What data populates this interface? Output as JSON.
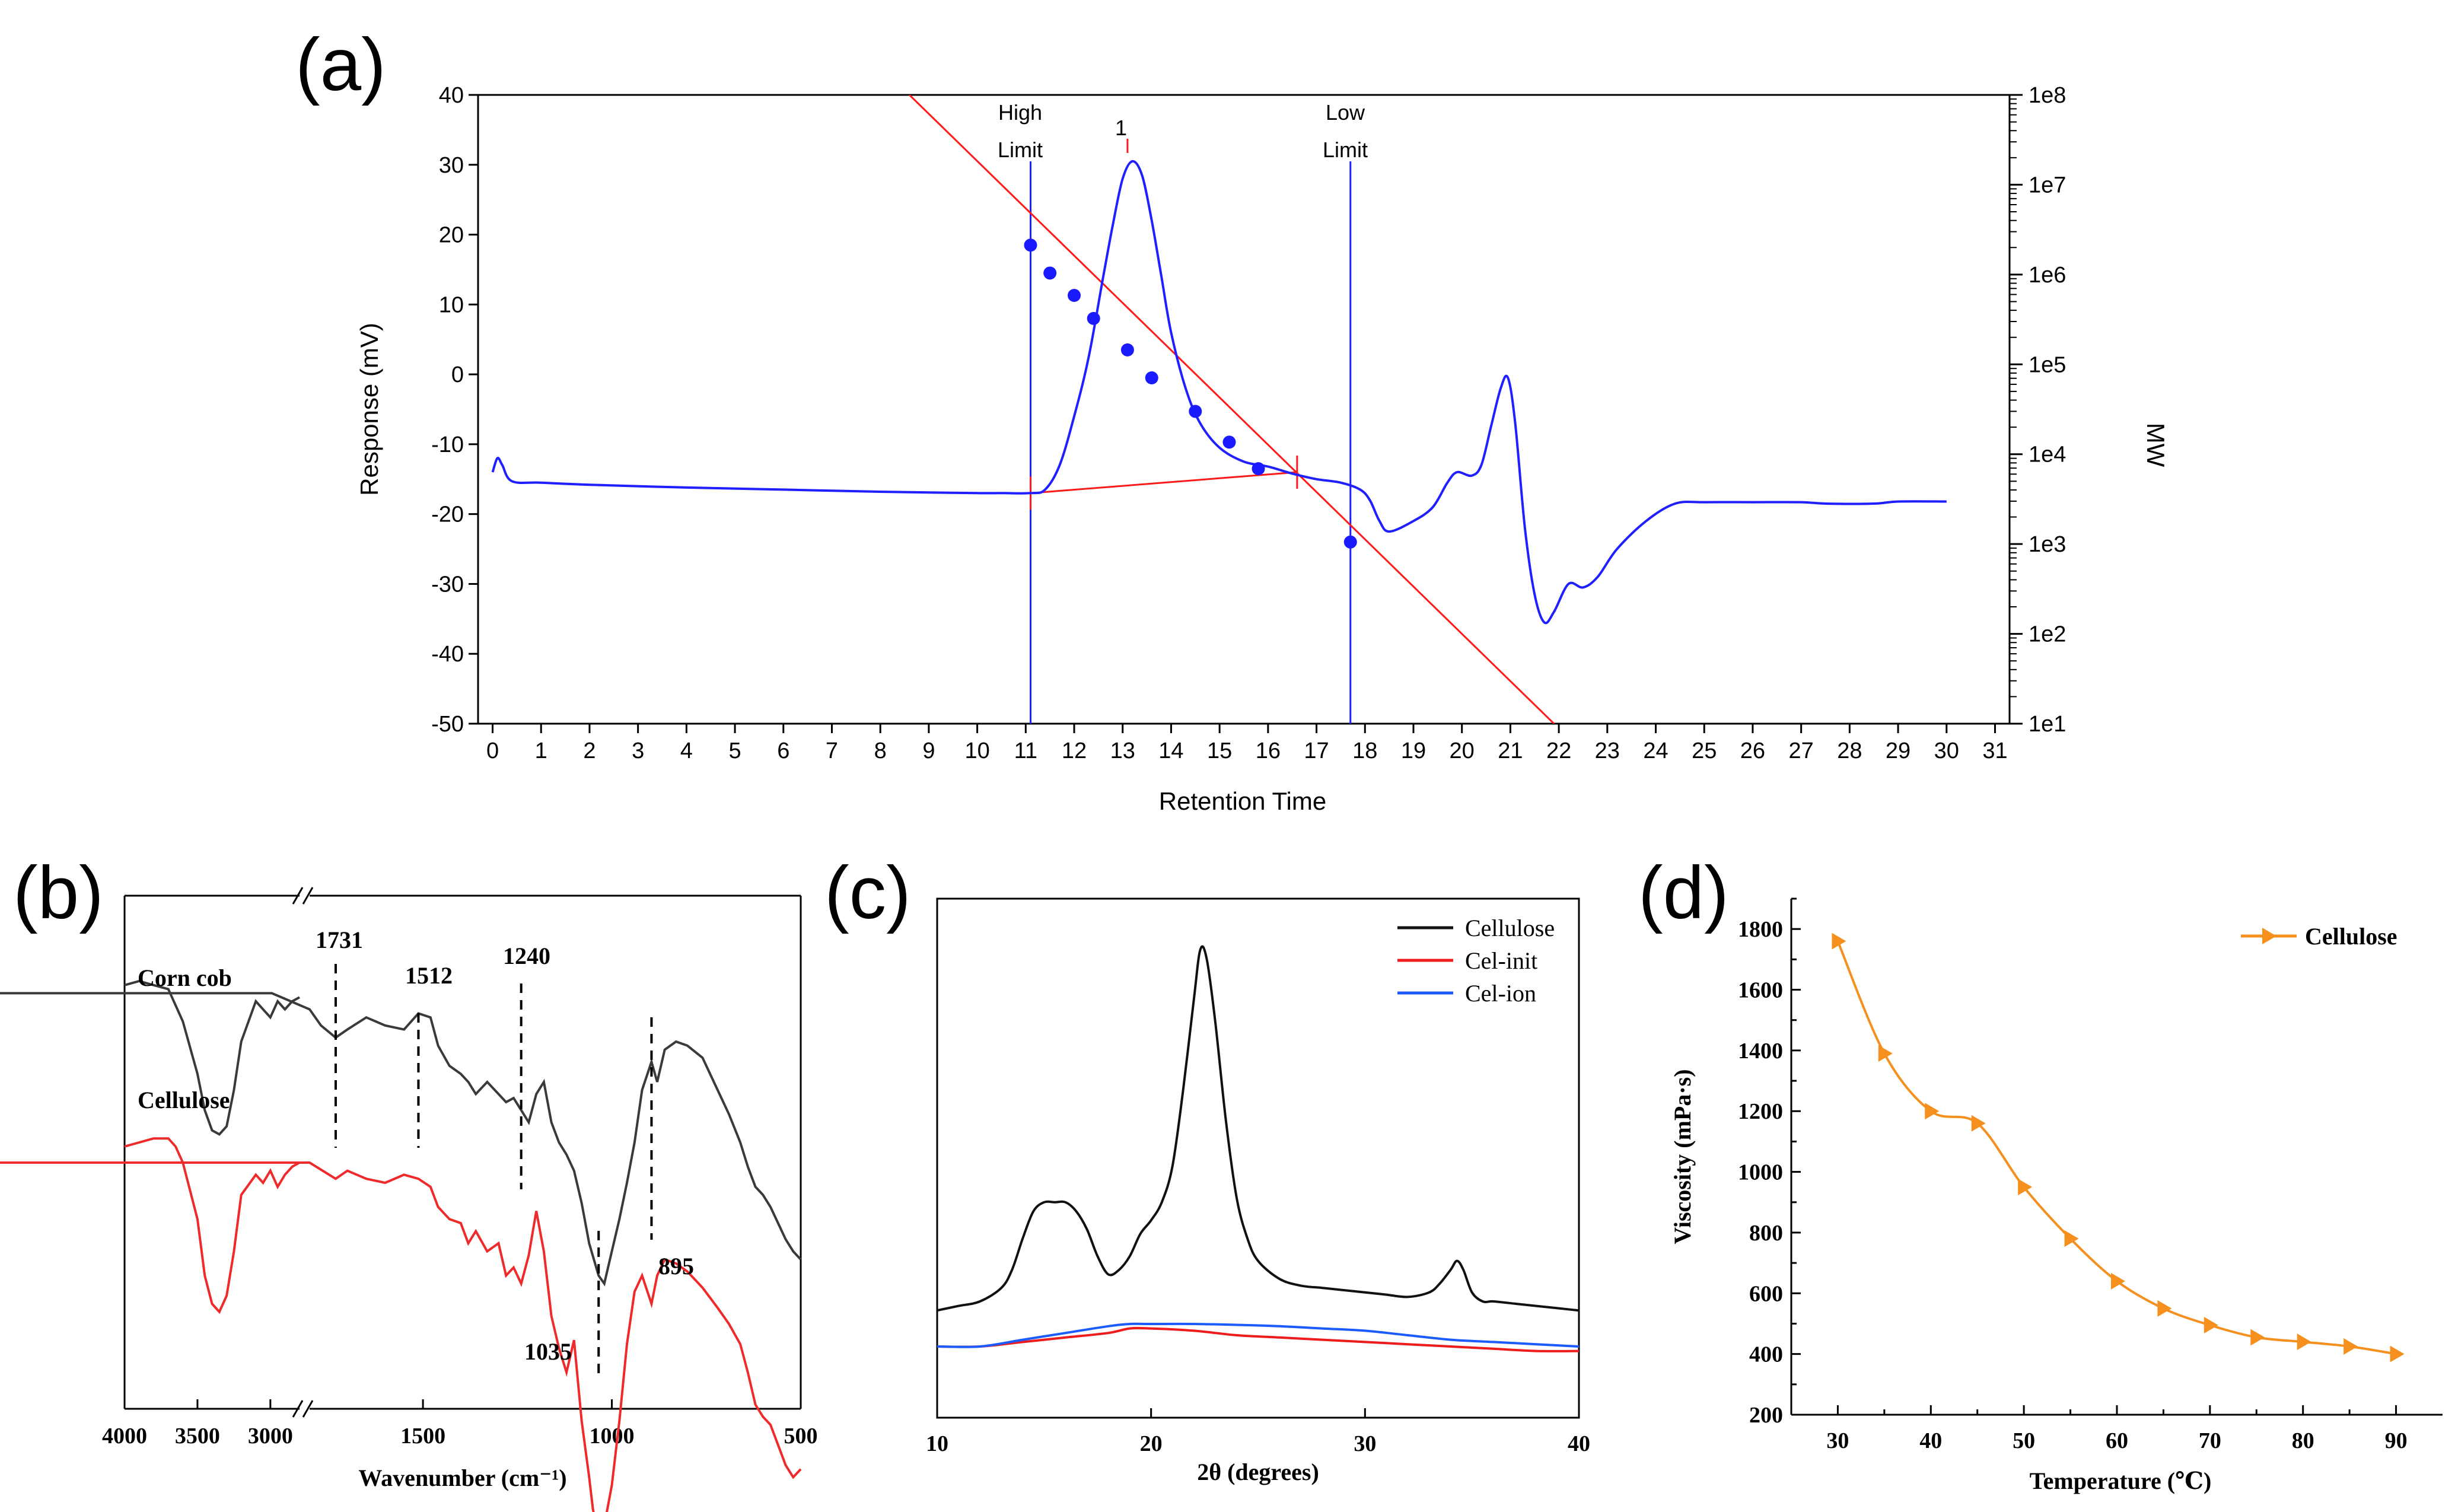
{
  "chart_data": [
    {
      "panel_label": "(a)",
      "type": "line",
      "xlabel": "Retention Time",
      "ylabel": "Response (mV)",
      "y2label": "MW",
      "xlim": [
        -0.3,
        31.3
      ],
      "ylim": [
        -50,
        40
      ],
      "xticks": [
        0,
        1,
        2,
        3,
        4,
        5,
        6,
        7,
        8,
        9,
        10,
        11,
        12,
        13,
        14,
        15,
        16,
        17,
        18,
        19,
        20,
        21,
        22,
        23,
        24,
        25,
        26,
        27,
        28,
        29,
        30,
        31
      ],
      "yticks": [
        40,
        30,
        20,
        10,
        0,
        -10,
        -20,
        -30,
        -40,
        -50
      ],
      "y2ticks": [
        "1e8",
        "1e7",
        "1e6",
        "1e5",
        "1e4",
        "1e3",
        "1e2",
        "1e1"
      ],
      "y2lim_log10": [
        1,
        8
      ],
      "markers": [
        {
          "label_top": "High",
          "label_bottom": "Limit",
          "x": 11.1
        },
        {
          "label_top": "Low",
          "label_bottom": "Limit",
          "x": 17.7
        }
      ],
      "peak_label": {
        "text": "1",
        "x": 13.1,
        "y": 30.5
      },
      "baseline": {
        "x": [
          11.1,
          16.6
        ],
        "y": [
          -17,
          -14
        ]
      },
      "calibration_line": {
        "x": [
          8.6,
          21.9
        ],
        "log10_mw": [
          8.0,
          1.0
        ]
      },
      "calibration_points": {
        "x": [
          11.1,
          11.5,
          12.0,
          12.4,
          13.1,
          13.6,
          14.5,
          15.2,
          15.8,
          17.7
        ],
        "y": [
          18.5,
          14.5,
          11.3,
          8.0,
          3.5,
          -0.5,
          -5.3,
          -9.7,
          -13.5,
          -24.0
        ]
      },
      "series": [
        {
          "name": "Response",
          "x": [
            0,
            0.1,
            0.2,
            0.4,
            1,
            2,
            4,
            6,
            8,
            9,
            10,
            10.5,
            11.1,
            11.4,
            11.7,
            12,
            12.3,
            12.6,
            12.8,
            13,
            13.2,
            13.4,
            13.6,
            13.8,
            14,
            14.3,
            14.6,
            15,
            15.5,
            16,
            16.5,
            17,
            17.5,
            17.9,
            18.1,
            18.3,
            18.5,
            19,
            19.4,
            19.7,
            19.9,
            20.2,
            20.4,
            20.6,
            20.8,
            20.95,
            21.1,
            21.3,
            21.5,
            21.7,
            21.9,
            22.2,
            22.5,
            22.8,
            23.2,
            23.8,
            24.4,
            25,
            26,
            27,
            27.5,
            28.5,
            29,
            30
          ],
          "y": [
            -14,
            -12,
            -13,
            -15.3,
            -15.5,
            -15.8,
            -16.2,
            -16.5,
            -16.8,
            -16.9,
            -17,
            -17,
            -17,
            -16.5,
            -13,
            -6,
            2.5,
            14,
            21.5,
            28,
            30.5,
            28.5,
            22,
            14,
            6,
            -2,
            -7,
            -10.5,
            -12.5,
            -13.2,
            -14.2,
            -15,
            -15.5,
            -16.5,
            -18,
            -21,
            -22.5,
            -21,
            -19,
            -15.5,
            -14,
            -14.5,
            -13,
            -7.5,
            -2,
            -0.5,
            -7,
            -22,
            -31.5,
            -35.5,
            -34,
            -30,
            -30.5,
            -29,
            -25,
            -21,
            -18.5,
            -18.3,
            -18.3,
            -18.3,
            -18.5,
            -18.5,
            -18.2,
            -18.2
          ]
        }
      ],
      "colors": {
        "response": "#1f1fff",
        "calibration": "#ff1a1a",
        "points": "#1a1aff",
        "markers": "#1f1fff"
      }
    },
    {
      "panel_label": "(b)",
      "type": "line",
      "xlabel": "Wavenumber (cm⁻¹)",
      "xticks": [
        4000,
        3500,
        3000,
        1500,
        1000,
        500
      ],
      "axis_break": true,
      "labels": [
        "Corn cob",
        "Cellulose"
      ],
      "peak_labels": [
        "1731",
        "1512",
        "1240",
        "1035",
        "895"
      ],
      "peak_positions": [
        1731,
        1512,
        1240,
        1035,
        895
      ],
      "series": [
        {
          "name": "Corn cob",
          "color": "#3a3a3a",
          "x": [
            4000,
            3900,
            3800,
            3700,
            3600,
            3500,
            3450,
            3400,
            3350,
            3300,
            3250,
            3200,
            3100,
            3050,
            3000,
            2950,
            2900,
            2850,
            2800,
            2700,
            2600,
            2500,
            2400,
            2300,
            2200,
            2100,
            2000,
            1900,
            1800,
            1770,
            1731,
            1700,
            1650,
            1600,
            1550,
            1512,
            1480,
            1460,
            1430,
            1400,
            1380,
            1360,
            1330,
            1300,
            1280,
            1260,
            1240,
            1220,
            1200,
            1180,
            1160,
            1140,
            1120,
            1100,
            1080,
            1060,
            1035,
            1020,
            1000,
            980,
            960,
            940,
            920,
            895,
            880,
            860,
            830,
            800,
            760,
            720,
            690,
            660,
            640,
            620,
            600,
            580,
            560,
            540,
            520,
            500
          ],
          "y": [
            0.94,
            0.95,
            0.94,
            0.93,
            0.85,
            0.72,
            0.63,
            0.58,
            0.57,
            0.59,
            0.68,
            0.8,
            0.9,
            0.88,
            0.86,
            0.9,
            0.88,
            0.9,
            0.91,
            0.92,
            0.92,
            0.92,
            0.92,
            0.92,
            0.92,
            0.92,
            0.92,
            0.92,
            0.88,
            0.84,
            0.81,
            0.83,
            0.86,
            0.84,
            0.83,
            0.87,
            0.86,
            0.79,
            0.74,
            0.72,
            0.7,
            0.67,
            0.7,
            0.67,
            0.65,
            0.66,
            0.63,
            0.6,
            0.67,
            0.7,
            0.6,
            0.55,
            0.52,
            0.48,
            0.4,
            0.3,
            0.22,
            0.2,
            0.28,
            0.36,
            0.45,
            0.55,
            0.68,
            0.75,
            0.7,
            0.78,
            0.8,
            0.79,
            0.76,
            0.68,
            0.62,
            0.55,
            0.49,
            0.44,
            0.42,
            0.39,
            0.35,
            0.31,
            0.28,
            0.26
          ]
        },
        {
          "name": "Cellulose",
          "color": "#ee2a2a",
          "x": [
            4000,
            3900,
            3800,
            3700,
            3650,
            3600,
            3500,
            3450,
            3400,
            3350,
            3300,
            3250,
            3200,
            3100,
            3050,
            3000,
            2950,
            2900,
            2850,
            2800,
            2700,
            2600,
            2500,
            2400,
            2300,
            2200,
            2100,
            2000,
            1900,
            1800,
            1731,
            1700,
            1650,
            1600,
            1550,
            1512,
            1480,
            1460,
            1430,
            1400,
            1380,
            1360,
            1330,
            1300,
            1280,
            1260,
            1240,
            1220,
            1200,
            1180,
            1160,
            1140,
            1120,
            1100,
            1080,
            1060,
            1050,
            1035,
            1020,
            1000,
            980,
            960,
            940,
            920,
            895,
            880,
            860,
            830,
            800,
            760,
            720,
            690,
            660,
            640,
            620,
            600,
            580,
            560,
            540,
            520,
            500
          ],
          "y": [
            0.54,
            0.55,
            0.56,
            0.56,
            0.54,
            0.5,
            0.36,
            0.22,
            0.15,
            0.13,
            0.17,
            0.28,
            0.42,
            0.47,
            0.45,
            0.48,
            0.44,
            0.47,
            0.49,
            0.5,
            0.5,
            0.5,
            0.5,
            0.5,
            0.5,
            0.5,
            0.5,
            0.5,
            0.5,
            0.5,
            0.46,
            0.48,
            0.46,
            0.45,
            0.47,
            0.46,
            0.44,
            0.39,
            0.36,
            0.35,
            0.3,
            0.33,
            0.28,
            0.3,
            0.22,
            0.24,
            0.2,
            0.27,
            0.38,
            0.28,
            0.12,
            0.04,
            -0.02,
            0.06,
            -0.14,
            -0.28,
            -0.36,
            -0.42,
            -0.4,
            -0.3,
            -0.14,
            0.05,
            0.18,
            0.22,
            0.15,
            0.22,
            0.26,
            0.25,
            0.23,
            0.19,
            0.14,
            0.1,
            0.05,
            -0.02,
            -0.1,
            -0.13,
            -0.15,
            -0.2,
            -0.25,
            -0.28,
            -0.26
          ]
        }
      ]
    },
    {
      "panel_label": "(c)",
      "type": "line",
      "xlabel": "2θ (degrees)",
      "xlim": [
        10,
        40
      ],
      "ylim": [
        0,
        1
      ],
      "xticks": [
        10,
        20,
        30,
        40
      ],
      "series": [
        {
          "name": "Cellulose",
          "color": "#111111",
          "x": [
            10,
            11,
            12,
            13,
            13.5,
            14,
            14.5,
            15,
            15.5,
            16,
            16.5,
            17,
            17.5,
            18,
            18.5,
            19,
            19.5,
            20,
            20.5,
            21,
            21.5,
            22,
            22.3,
            22.6,
            23,
            23.5,
            24,
            24.5,
            25,
            26,
            27,
            28,
            29,
            30,
            31,
            32,
            33,
            33.5,
            34,
            34.3,
            34.6,
            35,
            35.5,
            36,
            37,
            38,
            39,
            40
          ],
          "y": [
            0.08,
            0.09,
            0.1,
            0.13,
            0.17,
            0.24,
            0.3,
            0.32,
            0.32,
            0.32,
            0.3,
            0.26,
            0.2,
            0.16,
            0.17,
            0.2,
            0.25,
            0.28,
            0.32,
            0.4,
            0.57,
            0.77,
            0.88,
            0.86,
            0.72,
            0.5,
            0.33,
            0.24,
            0.19,
            0.15,
            0.135,
            0.13,
            0.125,
            0.12,
            0.115,
            0.11,
            0.12,
            0.14,
            0.17,
            0.19,
            0.17,
            0.12,
            0.1,
            0.1,
            0.095,
            0.09,
            0.085,
            0.08
          ]
        },
        {
          "name": "Cel-init",
          "color": "#ee1c1c",
          "x": [
            10,
            12,
            14,
            16,
            18,
            19,
            20,
            22,
            24,
            26,
            28,
            30,
            32,
            34,
            36,
            38,
            40
          ],
          "y": [
            0.0,
            0.0,
            0.01,
            0.02,
            0.03,
            0.04,
            0.04,
            0.035,
            0.025,
            0.02,
            0.015,
            0.01,
            0.005,
            0.0,
            -0.005,
            -0.01,
            -0.01
          ]
        },
        {
          "name": "Cel-ion",
          "color": "#1c5cff",
          "x": [
            10,
            12,
            14,
            16,
            18,
            19,
            20,
            22,
            24,
            26,
            28,
            30,
            32,
            34,
            36,
            38,
            40
          ],
          "y": [
            0.0,
            0.0,
            0.015,
            0.03,
            0.045,
            0.05,
            0.05,
            0.05,
            0.048,
            0.045,
            0.04,
            0.035,
            0.025,
            0.015,
            0.01,
            0.005,
            0.0
          ]
        }
      ]
    },
    {
      "panel_label": "(d)",
      "type": "line",
      "xlabel": "Temperature (℃)",
      "ylabel": "Viscosity (mPa·s)",
      "xlim": [
        25,
        95
      ],
      "ylim": [
        200,
        1900
      ],
      "xticks": [
        30,
        40,
        50,
        60,
        70,
        80,
        90
      ],
      "yticks": [
        200,
        400,
        600,
        800,
        1000,
        1200,
        1400,
        1600,
        1800
      ],
      "series": [
        {
          "name": "Cellulose",
          "color": "#f5901e",
          "x": [
            30,
            35,
            40,
            45,
            50,
            55,
            60,
            65,
            70,
            75,
            80,
            85,
            90
          ],
          "y": [
            1760,
            1390,
            1200,
            1160,
            950,
            780,
            640,
            550,
            495,
            455,
            440,
            425,
            400
          ]
        }
      ]
    }
  ]
}
